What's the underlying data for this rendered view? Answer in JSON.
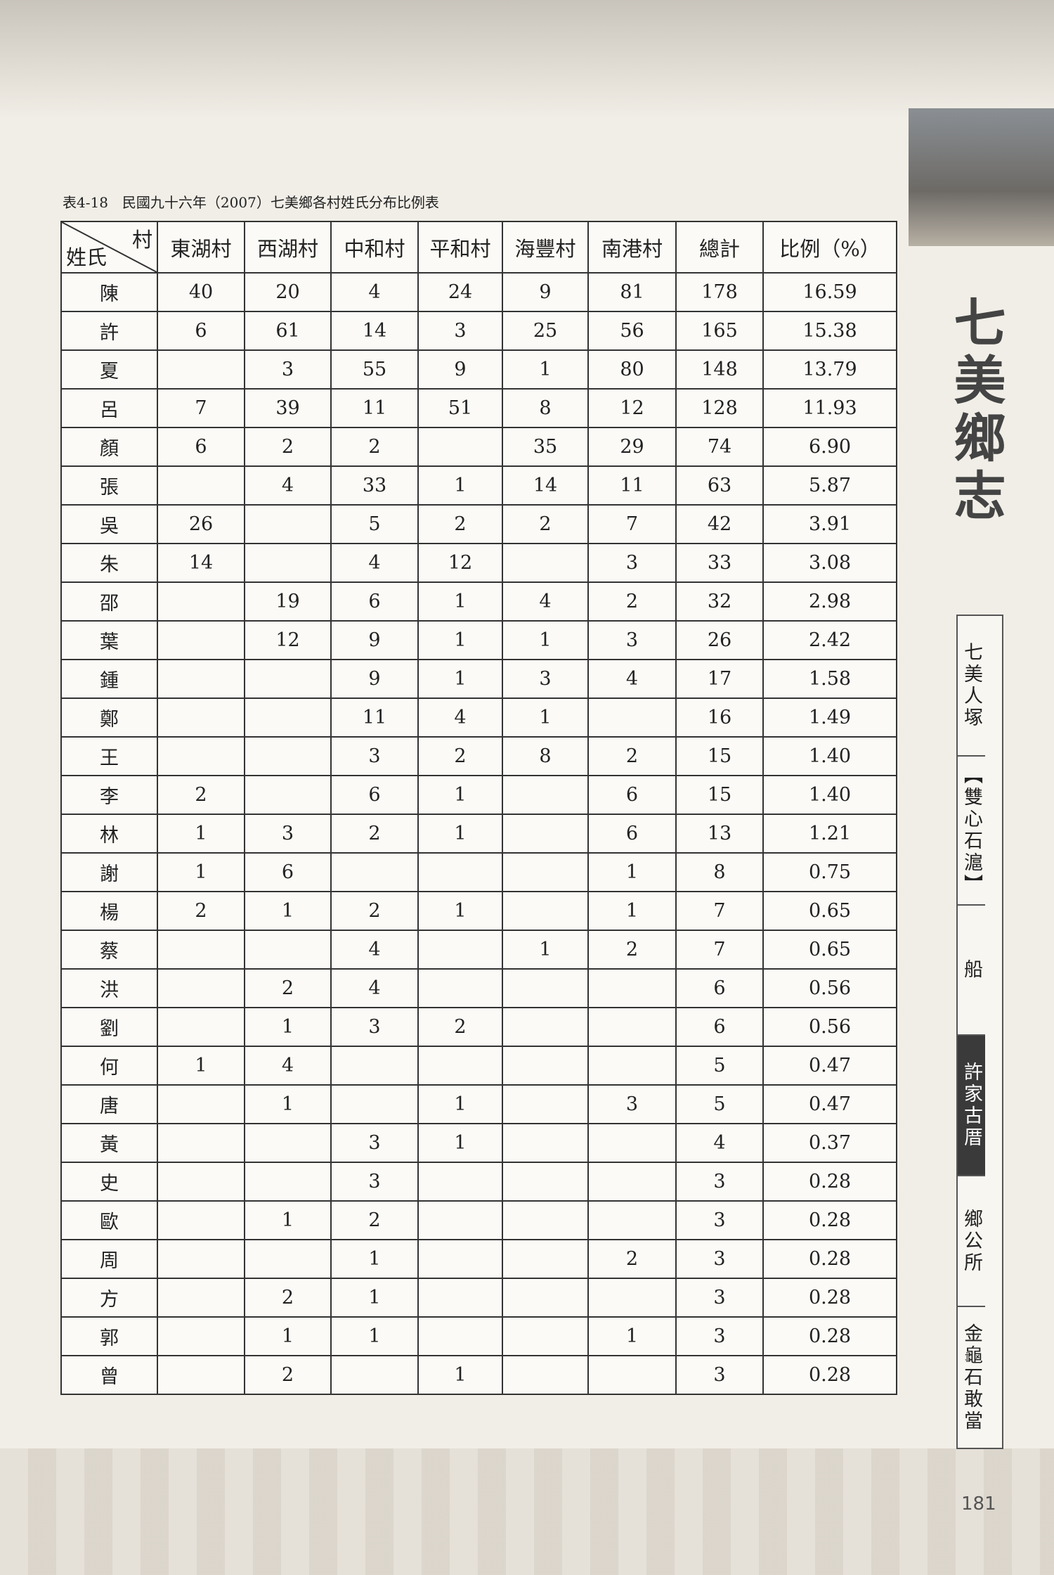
{
  "caption": "表4-18　民國九十六年（2007）七美鄉各村姓氏分布比例表",
  "table": {
    "corner": {
      "top": "村",
      "bottom": "姓氏"
    },
    "columns": [
      "東湖村",
      "西湖村",
      "中和村",
      "平和村",
      "海豐村",
      "南港村",
      "總計",
      "比例（%）"
    ],
    "rows": [
      [
        "陳",
        40,
        20,
        4,
        24,
        9,
        81,
        178,
        "16.59"
      ],
      [
        "許",
        6,
        61,
        14,
        3,
        25,
        56,
        165,
        "15.38"
      ],
      [
        "夏",
        null,
        3,
        55,
        9,
        1,
        80,
        148,
        "13.79"
      ],
      [
        "呂",
        7,
        39,
        11,
        51,
        8,
        12,
        128,
        "11.93"
      ],
      [
        "顏",
        6,
        2,
        2,
        null,
        35,
        29,
        74,
        "6.90"
      ],
      [
        "張",
        null,
        4,
        33,
        1,
        14,
        11,
        63,
        "5.87"
      ],
      [
        "吳",
        26,
        null,
        5,
        2,
        2,
        7,
        42,
        "3.91"
      ],
      [
        "朱",
        14,
        null,
        4,
        12,
        null,
        3,
        33,
        "3.08"
      ],
      [
        "邵",
        null,
        19,
        6,
        1,
        4,
        2,
        32,
        "2.98"
      ],
      [
        "葉",
        null,
        12,
        9,
        1,
        1,
        3,
        26,
        "2.42"
      ],
      [
        "鍾",
        null,
        null,
        9,
        1,
        3,
        4,
        17,
        "1.58"
      ],
      [
        "鄭",
        null,
        null,
        11,
        4,
        1,
        null,
        16,
        "1.49"
      ],
      [
        "王",
        null,
        null,
        3,
        2,
        8,
        2,
        15,
        "1.40"
      ],
      [
        "李",
        2,
        null,
        6,
        1,
        null,
        6,
        15,
        "1.40"
      ],
      [
        "林",
        1,
        3,
        2,
        1,
        null,
        6,
        13,
        "1.21"
      ],
      [
        "謝",
        1,
        6,
        null,
        null,
        null,
        1,
        8,
        "0.75"
      ],
      [
        "楊",
        2,
        1,
        2,
        1,
        null,
        1,
        7,
        "0.65"
      ],
      [
        "蔡",
        null,
        null,
        4,
        null,
        1,
        2,
        7,
        "0.65"
      ],
      [
        "洪",
        null,
        2,
        4,
        null,
        null,
        null,
        6,
        "0.56"
      ],
      [
        "劉",
        null,
        1,
        3,
        2,
        null,
        null,
        6,
        "0.56"
      ],
      [
        "何",
        1,
        4,
        null,
        null,
        null,
        null,
        5,
        "0.47"
      ],
      [
        "唐",
        null,
        1,
        null,
        1,
        null,
        3,
        5,
        "0.47"
      ],
      [
        "黃",
        null,
        null,
        3,
        1,
        null,
        null,
        4,
        "0.37"
      ],
      [
        "史",
        null,
        null,
        3,
        null,
        null,
        null,
        3,
        "0.28"
      ],
      [
        "歐",
        null,
        1,
        2,
        null,
        null,
        null,
        3,
        "0.28"
      ],
      [
        "周",
        null,
        null,
        1,
        null,
        null,
        2,
        3,
        "0.28"
      ],
      [
        "方",
        null,
        2,
        1,
        null,
        null,
        null,
        3,
        "0.28"
      ],
      [
        "郭",
        null,
        1,
        1,
        null,
        null,
        1,
        3,
        "0.28"
      ],
      [
        "曾",
        null,
        2,
        null,
        1,
        null,
        null,
        3,
        "0.28"
      ]
    ]
  },
  "sidebar": {
    "book_title": "七美鄉志",
    "tabs": [
      "七美人塚",
      "【雙心石滬】",
      "船",
      "許家古厝",
      "鄉公所",
      "金龜石敢當"
    ],
    "active_tab": 3
  },
  "page_number": "181"
}
